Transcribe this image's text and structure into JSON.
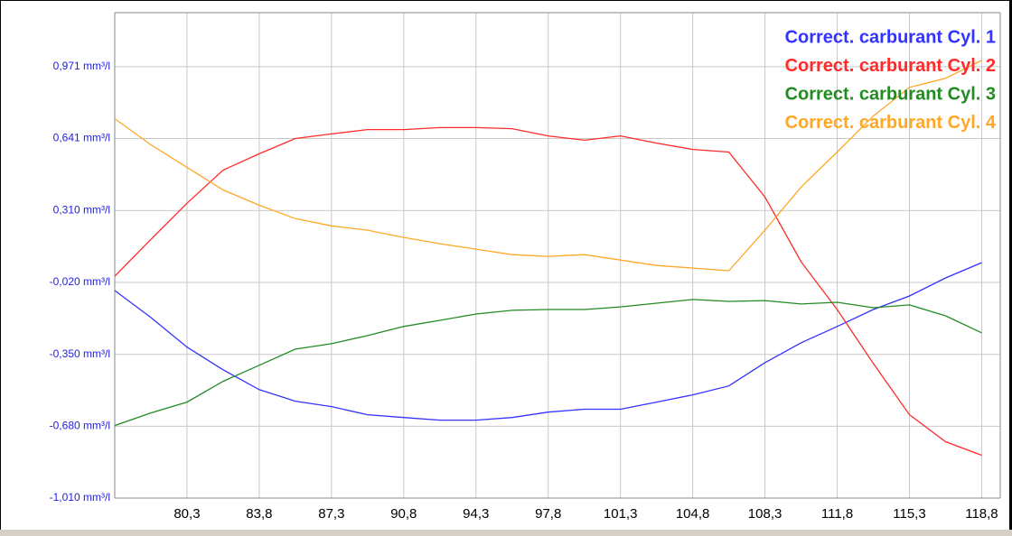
{
  "chart_data": {
    "type": "line",
    "x": [
      76.8,
      78.55,
      80.3,
      82.05,
      83.8,
      85.55,
      87.3,
      89.05,
      90.8,
      92.55,
      94.3,
      96.05,
      97.8,
      99.55,
      101.3,
      103.05,
      104.8,
      106.55,
      108.3,
      110.05,
      111.8,
      113.55,
      115.3,
      117.05,
      118.8
    ],
    "series": [
      {
        "name": "Correct. carburant Cyl. 1",
        "color": "#3333ff",
        "values": [
          -0.057,
          -0.181,
          -0.317,
          -0.421,
          -0.512,
          -0.565,
          -0.59,
          -0.627,
          -0.64,
          -0.652,
          -0.652,
          -0.64,
          -0.615,
          -0.602,
          -0.602,
          -0.569,
          -0.536,
          -0.495,
          -0.388,
          -0.297,
          -0.222,
          -0.144,
          -0.082,
          0.001,
          0.071
        ]
      },
      {
        "name": "Correct. carburant Cyl. 2",
        "color": "#ff2a2a",
        "values": [
          0.009,
          0.178,
          0.344,
          0.496,
          0.571,
          0.641,
          0.662,
          0.682,
          0.682,
          0.691,
          0.691,
          0.686,
          0.653,
          0.633,
          0.653,
          0.62,
          0.591,
          0.579,
          0.372,
          0.075,
          -0.144,
          -0.392,
          -0.627,
          -0.751,
          -0.813
        ]
      },
      {
        "name": "Correct. carburant Cyl. 3",
        "color": "#228b22",
        "values": [
          -0.677,
          -0.619,
          -0.569,
          -0.474,
          -0.4,
          -0.326,
          -0.301,
          -0.264,
          -0.222,
          -0.194,
          -0.165,
          -0.148,
          -0.144,
          -0.144,
          -0.132,
          -0.115,
          -0.098,
          -0.107,
          -0.103,
          -0.119,
          -0.111,
          -0.136,
          -0.123,
          -0.173,
          -0.251
        ]
      },
      {
        "name": "Correct. carburant Cyl. 4",
        "color": "#ffa726",
        "values": [
          0.732,
          0.612,
          0.509,
          0.405,
          0.335,
          0.273,
          0.24,
          0.22,
          0.187,
          0.158,
          0.133,
          0.108,
          0.1,
          0.108,
          0.083,
          0.058,
          0.046,
          0.034,
          0.22,
          0.418,
          0.579,
          0.744,
          0.876,
          0.918,
          1.0
        ]
      }
    ],
    "xlim": [
      76.8,
      119.7
    ],
    "ylim": [
      -1.01,
      1.219
    ],
    "xticks": [
      {
        "value": 80.3,
        "label": "80,3"
      },
      {
        "value": 83.8,
        "label": "83,8"
      },
      {
        "value": 87.3,
        "label": "87,3"
      },
      {
        "value": 90.8,
        "label": "90,8"
      },
      {
        "value": 94.3,
        "label": "94,3"
      },
      {
        "value": 97.8,
        "label": "97,8"
      },
      {
        "value": 101.3,
        "label": "101,3"
      },
      {
        "value": 104.8,
        "label": "104,8"
      },
      {
        "value": 108.3,
        "label": "108,3"
      },
      {
        "value": 111.8,
        "label": "111,8"
      },
      {
        "value": 115.3,
        "label": "115,3"
      },
      {
        "value": 118.8,
        "label": "118,8"
      }
    ],
    "yticks": [
      {
        "value": 0.971,
        "label": "0,971 mm³/l"
      },
      {
        "value": 0.641,
        "label": "0,641 mm³/l"
      },
      {
        "value": 0.31,
        "label": "0,310 mm³/l"
      },
      {
        "value": -0.02,
        "label": "-0,020 mm³/l"
      },
      {
        "value": -0.35,
        "label": "-0,350 mm³/l"
      },
      {
        "value": -0.68,
        "label": "-0,680 mm³/l"
      },
      {
        "value": -1.01,
        "label": "-1,010 mm³/l"
      }
    ],
    "grid": true,
    "legend": "top-right"
  }
}
